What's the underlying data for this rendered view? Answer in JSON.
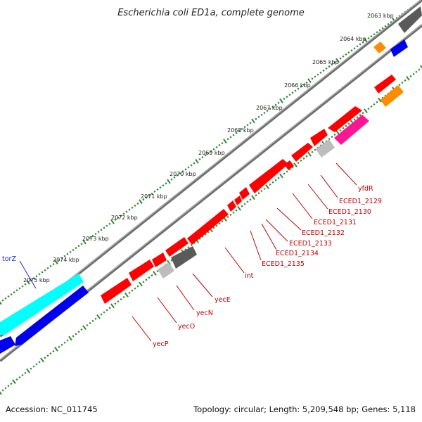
{
  "title": "Escherichia coli ED1a, complete genome",
  "kbp_ticks": [
    "2063 kbp",
    "2064 kbp",
    "2065 kbp",
    "2066 kbp",
    "2067 kbp",
    "2068 kbp",
    "2069 kbp",
    "2070 kbp",
    "2071 kbp",
    "2072 kbp",
    "2073 kbp",
    "2074 kbp",
    "2075 kbp"
  ],
  "gene_labels": {
    "torZ": "torZ",
    "yfdR": "yfdR",
    "ECED1_2129": "ECED1_2129",
    "ECED1_2130": "ECED1_2130",
    "ECED1_2131": "ECED1_2131",
    "ECED1_2132": "ECED1_2132",
    "ECED1_2133": "ECED1_2133",
    "ECED1_2134": "ECED1_2134",
    "ECED1_2135": "ECED1_2135",
    "int": "int",
    "yecE": "yecE",
    "yecN": "yecN",
    "yecO": "yecO",
    "yecP": "yecP"
  },
  "colors": {
    "gene_red": "#ff0000",
    "gene_blue": "#0000ee",
    "gene_cyan": "#00ffff",
    "gene_gray": "#5a5a5a",
    "gene_lightgray": "#bdbdbd",
    "gene_orange": "#ff8c00",
    "gene_pink": "#ff1493",
    "backbone": "#777777",
    "tick_green": "#2e8b2e",
    "label_red": "#c00000",
    "label_blue": "#1a2ad8"
  },
  "footer": {
    "accession": "Accession: NC_011745",
    "stats": "Topology: circular; Length: 5,209,548 bp; Genes: 5,118"
  }
}
